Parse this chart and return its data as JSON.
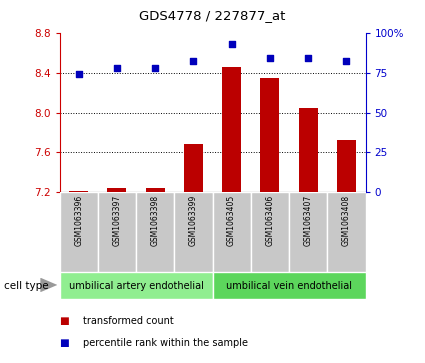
{
  "title": "GDS4778 / 227877_at",
  "samples": [
    "GSM1063396",
    "GSM1063397",
    "GSM1063398",
    "GSM1063399",
    "GSM1063405",
    "GSM1063406",
    "GSM1063407",
    "GSM1063408"
  ],
  "transformed_count": [
    7.21,
    7.24,
    7.24,
    7.68,
    8.46,
    8.35,
    8.05,
    7.72
  ],
  "percentile_rank": [
    74,
    78,
    78,
    82,
    93,
    84,
    84,
    82
  ],
  "cell_types": [
    {
      "label": "umbilical artery endothelial",
      "start": 0,
      "end": 4,
      "color": "#90EE90"
    },
    {
      "label": "umbilical vein endothelial",
      "start": 4,
      "end": 8,
      "color": "#5CD65C"
    }
  ],
  "bar_color": "#BB0000",
  "dot_color": "#0000BB",
  "ylim_left": [
    7.2,
    8.8
  ],
  "ylim_right": [
    0,
    100
  ],
  "yticks_left": [
    7.2,
    7.6,
    8.0,
    8.4,
    8.8
  ],
  "yticks_right": [
    0,
    25,
    50,
    75,
    100
  ],
  "grid_values": [
    7.6,
    8.0,
    8.4
  ],
  "bar_width": 0.5,
  "left_axis_color": "#CC0000",
  "right_axis_color": "#0000CC",
  "label_box_color": "#C8C8C8",
  "legend_items": [
    {
      "color": "#BB0000",
      "label": "transformed count"
    },
    {
      "color": "#0000BB",
      "label": "percentile rank within the sample"
    }
  ],
  "cell_type_label": "cell type",
  "background_color": "#ffffff"
}
